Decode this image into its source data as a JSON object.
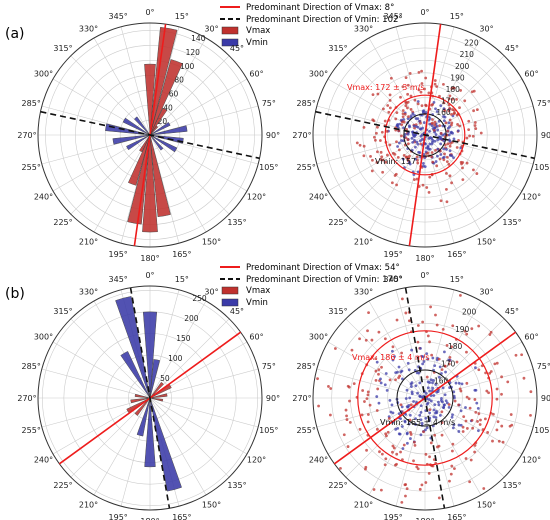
{
  "panels": [
    {
      "label": "(a)",
      "legend": {
        "vmax_line": "Predominant Direction of Vmax: 8°",
        "vmin_line": "Predominant Direction of Vmin: 102°",
        "vmax_bar": "Vmax",
        "vmin_bar": "Vmin"
      },
      "scatter_vmax_text": "Vmax: 172 ± 3 m/s",
      "scatter_vmin_text": "Vmin: 157"
    },
    {
      "label": "(b)",
      "legend": {
        "vmax_line": "Predominant Direction of Vmax: 54°",
        "vmin_line": "Predominant Direction of Vmin: 170°",
        "vmax_bar": "Vmax",
        "vmin_bar": "Vmin"
      },
      "scatter_vmax_text": "Vmax: 186 ± 4 m/s",
      "scatter_vmin_text": "Vmin: 165 ± 4 m/s"
    }
  ],
  "colors": {
    "vmax": "#c0312e",
    "vmin": "#3b3ba8",
    "vmax_line": "#ee1c1c",
    "vmin_line": "#111111",
    "band_vmax": "#e77a7a",
    "band_vmin": "#8a8ad6",
    "grid": "#cccccc"
  },
  "chart_data": [
    {
      "panel": "(a)",
      "type": "polar-bar",
      "theta_ticks": [
        "0°",
        "15°",
        "30°",
        "45°",
        "60°",
        "75°",
        "90°",
        "105°",
        "120°",
        "135°",
        "150°",
        "165°",
        "180°",
        "195°",
        "210°",
        "225°",
        "240°",
        "255°",
        "270°",
        "285°",
        "300°",
        "315°",
        "330°",
        "345°"
      ],
      "r_ticks": [
        20,
        40,
        60,
        80,
        100,
        120,
        140
      ],
      "rmax": 150,
      "predominant_direction_vmax_deg": 8,
      "predominant_direction_vmin_deg": 102,
      "series": [
        {
          "name": "Vmax",
          "directions_deg": [
            0,
            10,
            20,
            30,
            40,
            170,
            180,
            190,
            200,
            210
          ],
          "counts": [
            95,
            145,
            105,
            40,
            15,
            110,
            130,
            120,
            70,
            25
          ]
        },
        {
          "name": "Vmin",
          "directions_deg": [
            60,
            80,
            100,
            120,
            140,
            240,
            260,
            280,
            300,
            320
          ],
          "counts": [
            30,
            50,
            45,
            40,
            25,
            35,
            50,
            60,
            40,
            30
          ]
        }
      ]
    },
    {
      "panel": "(a)",
      "type": "polar-scatter",
      "theta_ticks": [
        "0°",
        "15°",
        "30°",
        "45°",
        "60°",
        "75°",
        "90°",
        "105°",
        "120°",
        "135°",
        "150°",
        "165°",
        "180°",
        "195°",
        "210°",
        "225°",
        "240°",
        "255°",
        "270°",
        "285°",
        "300°",
        "315°",
        "330°",
        "345°"
      ],
      "r_ticks": [
        160,
        170,
        180,
        190,
        200,
        210,
        220
      ],
      "rmin": 140,
      "rmax": 230,
      "vmax_mean": 172,
      "vmax_sd": 3,
      "vmin_mean": 157
    },
    {
      "panel": "(b)",
      "type": "polar-bar",
      "theta_ticks": [
        "0°",
        "15°",
        "30°",
        "45°",
        "60°",
        "75°",
        "90°",
        "105°",
        "120°",
        "135°",
        "150°",
        "165°",
        "180°",
        "195°",
        "210°",
        "225°",
        "240°",
        "255°",
        "270°",
        "285°",
        "300°",
        "315°",
        "330°",
        "345°"
      ],
      "r_ticks": [
        50,
        100,
        150,
        200,
        250
      ],
      "rmax": 260,
      "predominant_direction_vmax_deg": 54,
      "predominant_direction_vmin_deg": 170,
      "series": [
        {
          "name": "Vmax",
          "directions_deg": [
            40,
            60,
            80,
            100,
            220,
            240,
            260,
            280
          ],
          "counts": [
            45,
            55,
            40,
            30,
            50,
            60,
            45,
            35
          ]
        },
        {
          "name": "Vmin",
          "directions_deg": [
            330,
            345,
            0,
            10,
            165,
            180,
            195
          ],
          "counts": [
            120,
            240,
            200,
            90,
            220,
            160,
            90
          ]
        }
      ]
    },
    {
      "panel": "(b)",
      "type": "polar-scatter",
      "theta_ticks": [
        "0°",
        "15°",
        "30°",
        "45°",
        "60°",
        "75°",
        "90°",
        "105°",
        "120°",
        "135°",
        "150°",
        "165°",
        "180°",
        "195°",
        "210°",
        "225°",
        "240°",
        "255°",
        "270°",
        "285°",
        "300°",
        "315°",
        "330°",
        "345°"
      ],
      "r_ticks": [
        160,
        170,
        180,
        190,
        200
      ],
      "rmin": 150,
      "rmax": 210,
      "vmax_mean": 186,
      "vmax_sd": 4,
      "vmin_mean": 165,
      "vmin_sd": 4
    }
  ]
}
